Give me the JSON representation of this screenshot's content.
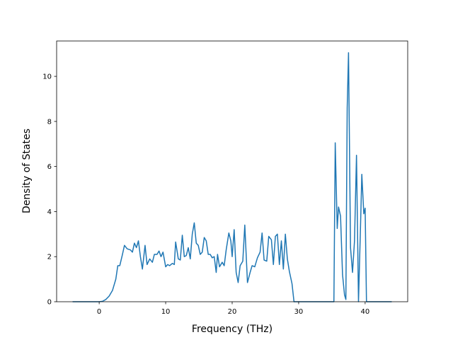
{
  "chart_data": {
    "type": "line",
    "x_label": "Frequency (THz)",
    "y_label": "Density of States",
    "xlim": [
      -6.4,
      46.4
    ],
    "ylim": [
      0,
      11.57
    ],
    "xticks": [
      0,
      10,
      20,
      30,
      40
    ],
    "yticks": [
      0,
      2,
      4,
      6,
      8,
      10
    ],
    "x": [
      -4,
      0,
      0.5,
      1,
      1.5,
      2,
      2.5,
      2.8,
      3.1,
      3.5,
      3.8,
      4.2,
      4.7,
      5,
      5.3,
      5.6,
      5.9,
      6.2,
      6.5,
      6.9,
      7.2,
      7.6,
      8,
      8.3,
      8.7,
      9,
      9.3,
      9.6,
      10,
      10.3,
      10.6,
      11,
      11.3,
      11.5,
      11.9,
      12.2,
      12.5,
      12.8,
      13.1,
      13.4,
      13.7,
      14,
      14.3,
      14.6,
      14.9,
      15.2,
      15.5,
      15.8,
      16.1,
      16.4,
      16.7,
      17,
      17.3,
      17.6,
      17.8,
      18.1,
      18.5,
      18.8,
      19.1,
      19.5,
      19.8,
      20,
      20.3,
      20.6,
      20.9,
      21.2,
      21.6,
      21.9,
      22.3,
      22.7,
      23,
      23.4,
      23.8,
      24.2,
      24.5,
      24.8,
      25.2,
      25.5,
      25.9,
      26.2,
      26.5,
      26.8,
      27.1,
      27.4,
      27.7,
      28,
      28.3,
      28.6,
      29,
      29.3,
      35.3,
      35.5,
      35.8,
      36,
      36.3,
      36.6,
      36.9,
      37.1,
      37.3,
      37.5,
      37.8,
      38.1,
      38.4,
      38.7,
      39,
      39.3,
      39.5,
      39.8,
      40,
      40.2,
      44
    ],
    "series": [
      {
        "color": "#1f77b4",
        "values": [
          0,
          0,
          0.02,
          0.1,
          0.25,
          0.5,
          1.0,
          1.6,
          1.6,
          2.1,
          2.5,
          2.35,
          2.3,
          2.2,
          2.6,
          2.4,
          2.7,
          2.0,
          1.45,
          2.5,
          1.65,
          1.9,
          1.75,
          2.1,
          2.1,
          2.25,
          2.0,
          2.2,
          1.55,
          1.65,
          1.6,
          1.7,
          1.65,
          2.65,
          1.9,
          1.85,
          2.95,
          2.0,
          2.05,
          2.4,
          1.9,
          3.0,
          3.5,
          2.6,
          2.5,
          2.1,
          2.2,
          2.85,
          2.7,
          2.1,
          2.1,
          1.95,
          2.0,
          1.3,
          2.1,
          1.55,
          1.75,
          1.6,
          2.3,
          3.05,
          2.7,
          2.0,
          3.2,
          1.3,
          0.85,
          1.6,
          1.8,
          3.4,
          0.85,
          1.3,
          1.6,
          1.55,
          1.95,
          2.2,
          3.05,
          1.85,
          1.8,
          2.9,
          2.75,
          1.65,
          2.9,
          3.0,
          1.65,
          2.7,
          1.45,
          3.0,
          1.9,
          1.35,
          0.8,
          0,
          0,
          7.05,
          3.25,
          4.2,
          3.8,
          1.2,
          0.3,
          0.1,
          8.6,
          11.05,
          2.4,
          1.3,
          2.7,
          6.5,
          0,
          3.3,
          5.65,
          3.9,
          4.15,
          0,
          0
        ]
      }
    ]
  }
}
